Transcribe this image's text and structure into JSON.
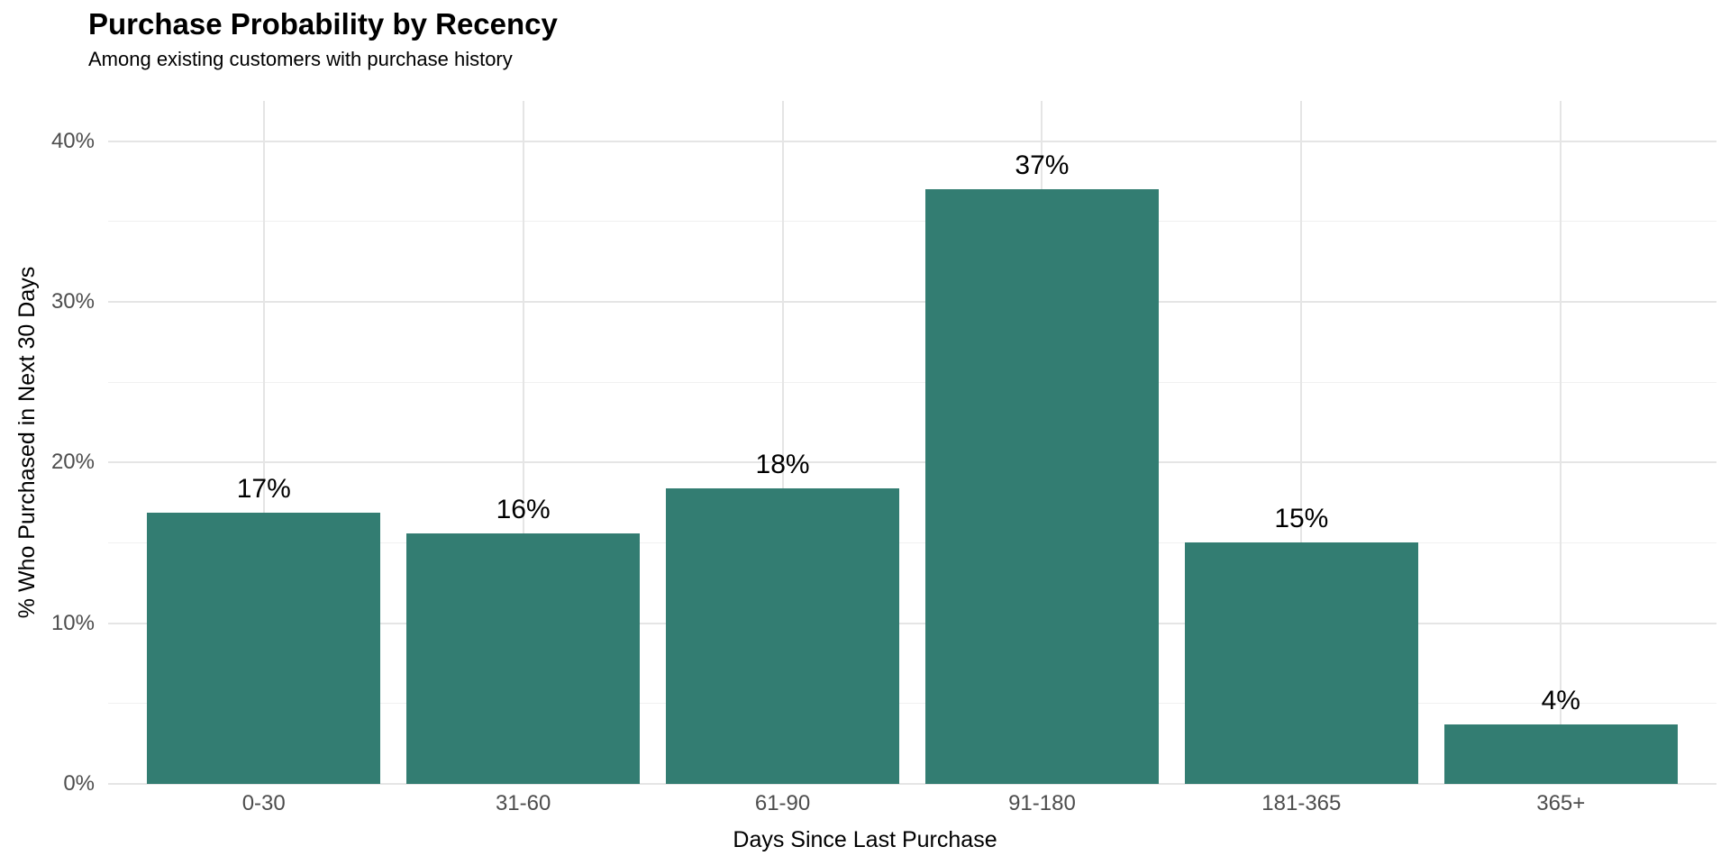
{
  "page": {
    "background_color": "#ffffff"
  },
  "chart_data": {
    "type": "bar",
    "title": "Purchase Probability by Recency",
    "subtitle": "Among existing customers with purchase history",
    "xlabel": "Days Since Last Purchase",
    "ylabel": "% Who Purchased in Next 30 Days",
    "categories": [
      "0-30",
      "31-60",
      "61-90",
      "91-180",
      "181-365",
      "365+"
    ],
    "values": [
      17,
      16,
      18,
      37,
      15,
      4
    ],
    "bar_labels": [
      "17%",
      "16%",
      "18%",
      "37%",
      "15%",
      "4%"
    ],
    "bar_heights_pct": [
      16.9,
      15.6,
      18.4,
      37.0,
      15.0,
      3.7
    ],
    "y_ticks": [
      0,
      10,
      20,
      30,
      40
    ],
    "y_tick_labels": [
      "0%",
      "10%",
      "20%",
      "30%",
      "40%"
    ],
    "y_minor_ticks": [
      5,
      15,
      25,
      35
    ],
    "ylim": [
      0,
      42.5
    ],
    "grid": true,
    "legend": false,
    "bar_color": "#337d72",
    "major_grid_color": "#e5e5e5",
    "minor_grid_color": "#f0f0f0",
    "axis_text_color": "#4d4d4d",
    "bar_label_color": "#000000"
  }
}
